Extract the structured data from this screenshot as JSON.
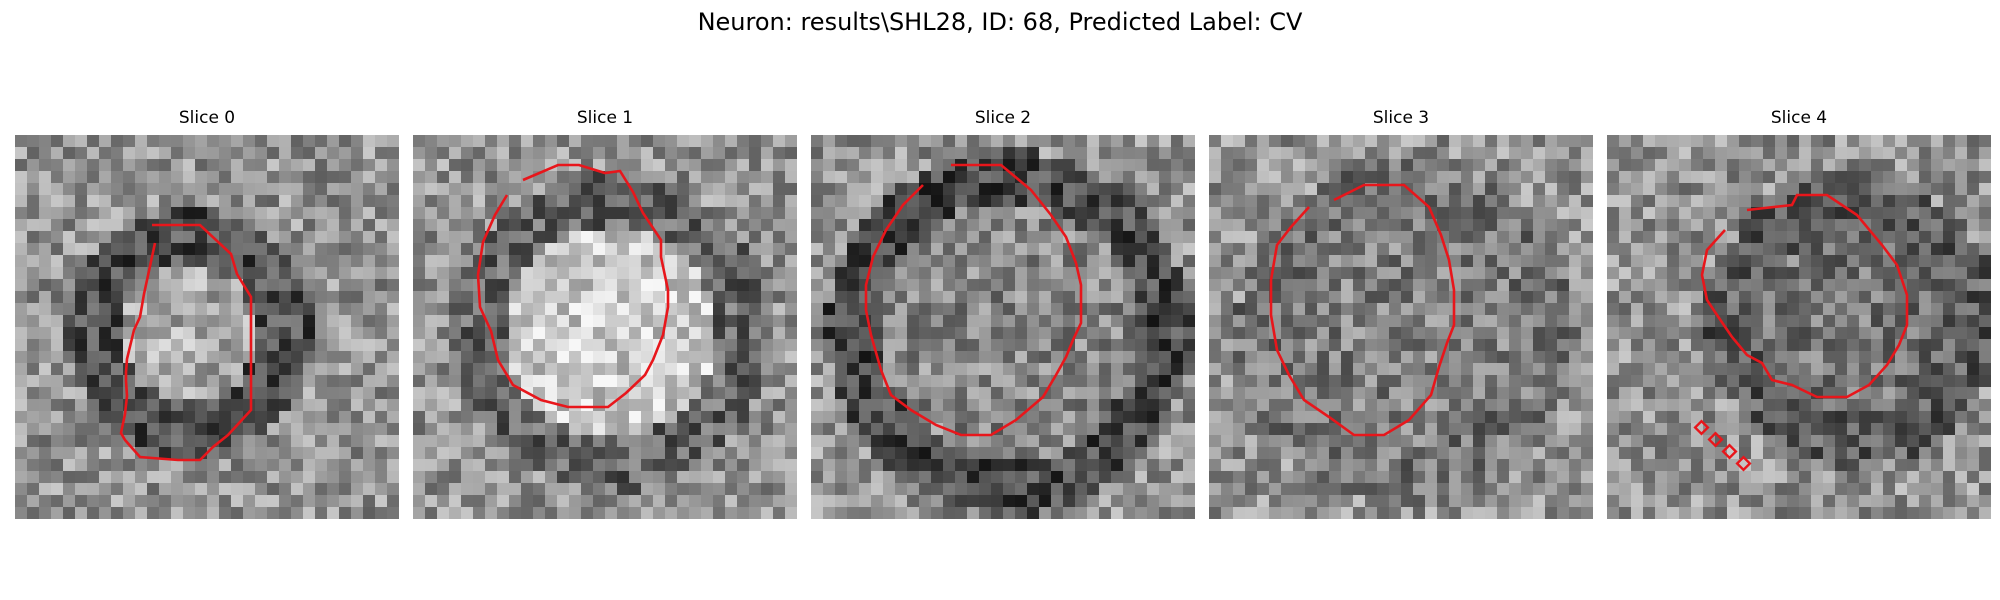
{
  "figure": {
    "title": "Neuron: results\\SHL28, ID: 68, Predicted Label: CV"
  },
  "panels": [
    {
      "title": "Slice 0"
    },
    {
      "title": "Slice 1"
    },
    {
      "title": "Slice 2"
    },
    {
      "title": "Slice 3"
    },
    {
      "title": "Slice 4"
    }
  ],
  "colors": {
    "contour": "#e8161b",
    "background": "#ffffff"
  }
}
